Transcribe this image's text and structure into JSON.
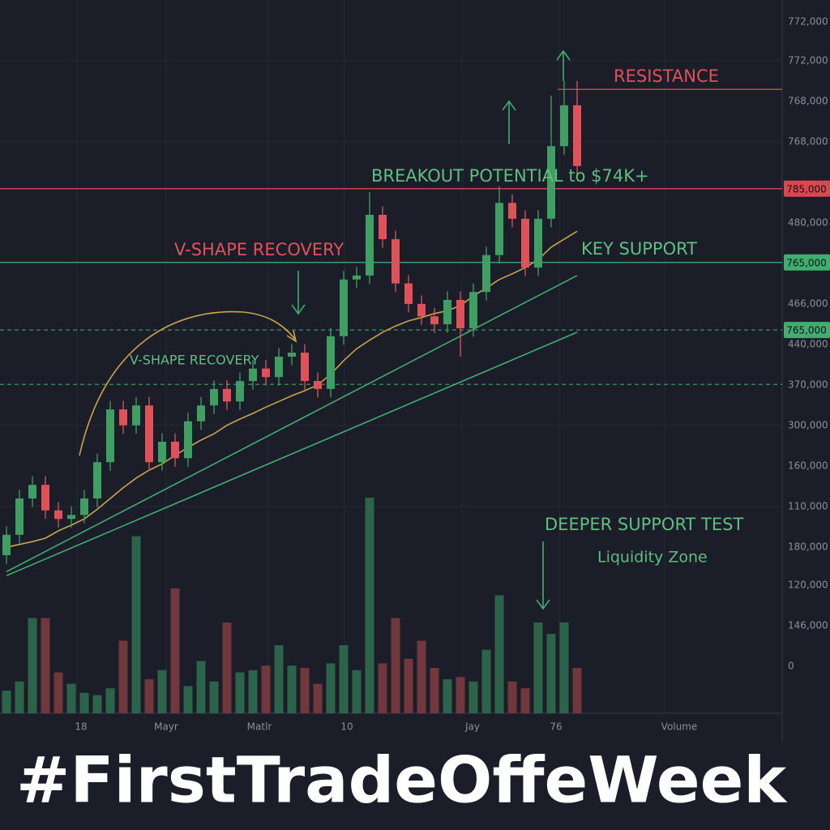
{
  "chart_data": {
    "type": "candlestick",
    "ylim": [
      0,
      100
    ],
    "open": [
      5,
      8.6,
      15,
      17.4,
      12.9,
      11.4,
      12.1,
      15,
      21.4,
      30.7,
      27.9,
      31.4,
      21.4,
      25,
      22.1,
      28.6,
      31.4,
      34.3,
      32.1,
      35.7,
      37.9,
      36.4,
      40,
      40.7,
      35.7,
      34.3,
      43.6,
      53.6,
      54.3,
      65,
      60.7,
      52.9,
      49.3,
      47.1,
      45.7,
      50,
      45,
      51.4,
      57.9,
      67.1,
      64.3,
      55.7,
      64.3,
      77.1,
      84.3
    ],
    "high": [
      10.1,
      16.5,
      18.9,
      18.9,
      14.4,
      13.6,
      16.5,
      22.9,
      32.2,
      32.2,
      32.9,
      32.9,
      26.5,
      26.5,
      30.1,
      32.9,
      35.8,
      35.8,
      37.2,
      39.4,
      39.4,
      41.5,
      42.2,
      42.2,
      37.2,
      45.1,
      55.1,
      55.8,
      69,
      66.5,
      62.2,
      54.4,
      50.8,
      48.6,
      51.5,
      51.5,
      52.9,
      59.4,
      70,
      68.6,
      65.8,
      65.8,
      86,
      88.6,
      88.6
    ],
    "low": [
      3.5,
      7.1,
      13.5,
      11.4,
      9.9,
      9.9,
      10.6,
      13.5,
      19.9,
      26.4,
      26.4,
      19.9,
      19.9,
      20.6,
      20.6,
      27.1,
      29.9,
      30.6,
      30.6,
      34.2,
      34.9,
      34.9,
      38.5,
      34.2,
      32.8,
      32.8,
      42.1,
      52.1,
      52.8,
      59.2,
      51.4,
      47.8,
      45.6,
      44.2,
      44.2,
      40,
      43.5,
      49.9,
      56.4,
      62.8,
      54.2,
      54.2,
      62.8,
      75.6,
      72.1
    ],
    "close": [
      8.6,
      15,
      17.4,
      12.9,
      11.4,
      12.1,
      15,
      21.4,
      30.7,
      27.9,
      31.4,
      21.4,
      25,
      22.1,
      28.6,
      31.4,
      34.3,
      32.1,
      35.7,
      37.9,
      36.4,
      40,
      40.7,
      35.7,
      34.3,
      43.6,
      53.6,
      54.3,
      65,
      60.7,
      52.9,
      49.3,
      47.1,
      45.7,
      50,
      45,
      51.4,
      57.9,
      67.1,
      64.3,
      55.7,
      64.3,
      77.1,
      84.3,
      73.6
    ],
    "up_color": "#3f9e63",
    "down_color": "#e0525a",
    "volume": {
      "vlim": [
        0,
        100
      ],
      "values": [
        10,
        14,
        42,
        42,
        18,
        13,
        9,
        8,
        11,
        32,
        78,
        15,
        19,
        55,
        12,
        23,
        14,
        40,
        18,
        19,
        21,
        30,
        21,
        20,
        13,
        22,
        30,
        19,
        95,
        22,
        42,
        24,
        32,
        20,
        15,
        16,
        14,
        28,
        52,
        14,
        11,
        40,
        35,
        40,
        20
      ],
      "up_color": "#2f6b4c",
      "down_color": "#7a3a3e"
    },
    "lines": [
      {
        "color": "#c9a54a",
        "values": [
          6.4,
          6.9,
          7.4,
          8,
          9.3,
          10.3,
          11.4,
          13.1,
          15,
          16.9,
          18.6,
          20,
          21.1,
          22.6,
          24,
          25.3,
          26.4,
          27.9,
          29,
          30,
          31.1,
          32.1,
          33.1,
          34,
          35,
          36.9,
          39.3,
          41.4,
          42.9,
          44.3,
          45.4,
          46.3,
          46.9,
          47.6,
          48.1,
          49,
          50.7,
          52.1,
          53.6,
          54.6,
          55.7,
          57.1,
          59.3,
          60.7,
          62.1
        ]
      },
      {
        "color": "#3fae6e",
        "index": [
          0,
          44
        ],
        "values": [
          2.1,
          54.3
        ]
      },
      {
        "color": "#3fae6e",
        "index": [
          0,
          44
        ],
        "values": [
          1.4,
          44.3
        ]
      }
    ],
    "levels": [
      {
        "value": 87.1,
        "color": "#d9474f",
        "style": "solid",
        "from_index": 43
      },
      {
        "value": 69.6,
        "color": "#d9474f",
        "style": "solid",
        "label": "785,000"
      },
      {
        "value": 56.6,
        "color": "#3fae6e",
        "style": "solid",
        "label": "765,000"
      },
      {
        "value": 44.7,
        "color": "#3fae6e",
        "style": "dashed",
        "label": "765,000"
      },
      {
        "value": 35.1,
        "color": "#3fae6e",
        "style": "dashed"
      }
    ],
    "axis_labels": [
      "772,000",
      "772,000",
      "768,000",
      "768,000",
      "480,000",
      "466,000",
      "440,000",
      "370,000",
      "300,000",
      "160,000",
      "110,000",
      "180,000",
      "120,000",
      "146,000",
      "0"
    ],
    "x_labels": [
      "18",
      "Mayr",
      "Matlr",
      "10",
      "Jay",
      "76",
      "Volume"
    ],
    "annotations": {
      "resistance": "RESISTANCE",
      "breakout": "BREAKOUT POTENTIAL to $74K+",
      "v_shape_1": "V-SHAPE RECOVERY",
      "key_support": "KEY SUPPORT",
      "v_shape_2": "V-SHAPE RECOVERY",
      "deeper": "DEEPER SUPPORT TEST",
      "liquidity": "Liquidity Zone"
    },
    "banner": "#FirstTradeOffeWeek"
  }
}
